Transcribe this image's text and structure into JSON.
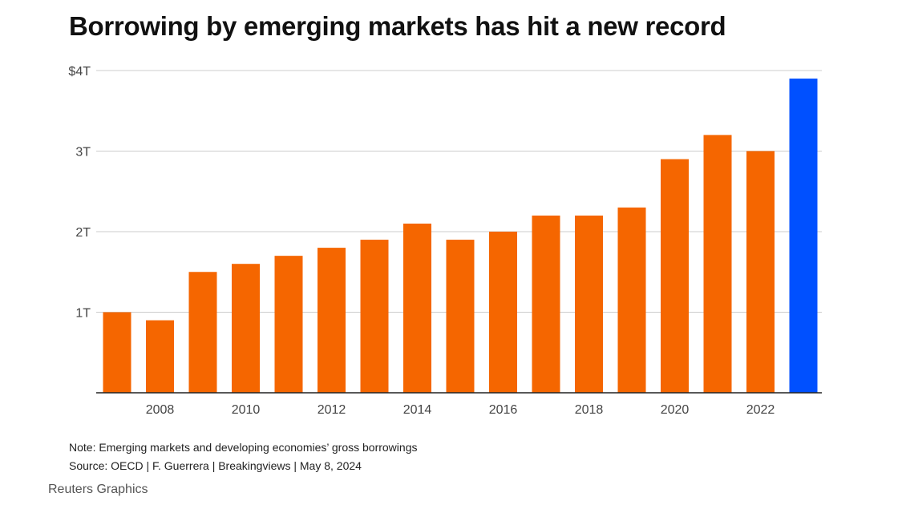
{
  "title": "Borrowing by emerging markets has hit a new record",
  "note": "Note: Emerging markets and developing economies’ gross borrowings",
  "source": "Source: OECD | F. Guerrera | Breakingviews | May 8, 2024",
  "credit": "Reuters Graphics",
  "colors": {
    "bar": "#f56600",
    "highlight": "#0050ff",
    "grid": "#cccccc",
    "axis": "#222222"
  },
  "chart_data": {
    "type": "bar",
    "categories": [
      "2007",
      "2008",
      "2009",
      "2010",
      "2011",
      "2012",
      "2013",
      "2014",
      "2015",
      "2016",
      "2017",
      "2018",
      "2019",
      "2020",
      "2021",
      "2022",
      "2023"
    ],
    "values": [
      1.0,
      0.9,
      1.5,
      1.6,
      1.7,
      1.8,
      1.9,
      2.1,
      1.9,
      2.0,
      2.2,
      2.2,
      2.3,
      2.9,
      3.2,
      3.0,
      3.9
    ],
    "highlight_category": "2023",
    "x_tick_labels": [
      "2008",
      "2010",
      "2012",
      "2014",
      "2016",
      "2018",
      "2020",
      "2022"
    ],
    "y_ticks": [
      {
        "value": 1,
        "label": "1T"
      },
      {
        "value": 2,
        "label": "2T"
      },
      {
        "value": 3,
        "label": "3T"
      },
      {
        "value": 4,
        "label": "$4T"
      }
    ],
    "ylim": [
      0,
      4
    ],
    "grid": true,
    "xlabel": "",
    "ylabel": ""
  }
}
